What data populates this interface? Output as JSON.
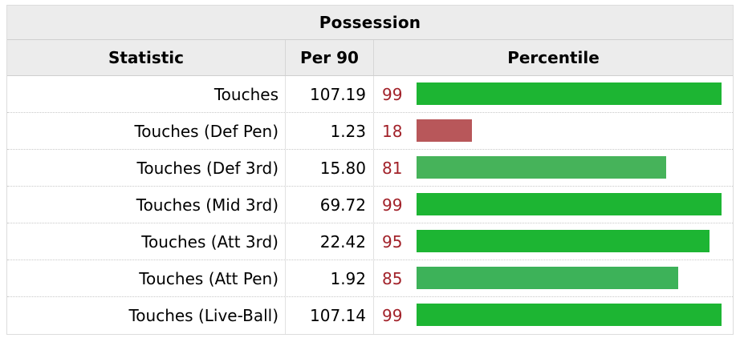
{
  "table": {
    "caption": "Possession",
    "columns": [
      "Statistic",
      "Per 90",
      "Percentile"
    ],
    "rows": [
      {
        "statistic": "Touches",
        "per90": "107.19",
        "percentile": "99",
        "color": "#1db533"
      },
      {
        "statistic": "Touches (Def Pen)",
        "per90": "1.23",
        "percentile": "18",
        "color": "#b8575a"
      },
      {
        "statistic": "Touches (Def 3rd)",
        "per90": "15.80",
        "percentile": "81",
        "color": "#46b35a"
      },
      {
        "statistic": "Touches (Mid 3rd)",
        "per90": "69.72",
        "percentile": "99",
        "color": "#1db533"
      },
      {
        "statistic": "Touches (Att 3rd)",
        "per90": "22.42",
        "percentile": "95",
        "color": "#1db533"
      },
      {
        "statistic": "Touches (Att Pen)",
        "per90": "1.92",
        "percentile": "85",
        "color": "#3db259"
      },
      {
        "statistic": "Touches (Live-Ball)",
        "per90": "107.14",
        "percentile": "99",
        "color": "#1db533"
      }
    ]
  }
}
